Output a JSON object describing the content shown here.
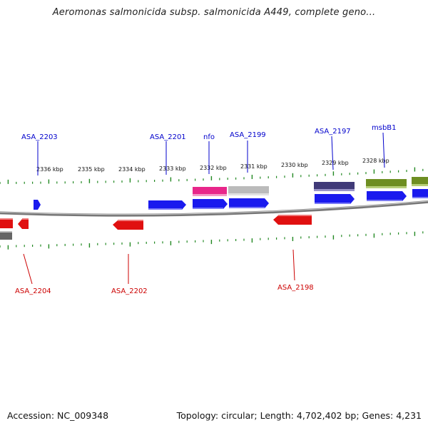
{
  "title": "Aeromonas salmonicida subsp. salmonicida A449, complete geno...",
  "footer": {
    "accession": "Accession: NC_009348",
    "topology": "Topology: circular; Length: 4,702,402 bp; Genes: 4,231"
  },
  "colors": {
    "forward_cds": "#1a1aee",
    "reverse_cds": "#e01010",
    "forward_label": "#0000cc",
    "reverse_label": "#cc0000",
    "ticks": "#228822",
    "backbone": "#888888"
  },
  "scale_labels": [
    {
      "kbp": 2336,
      "text": "2336 kbp"
    },
    {
      "kbp": 2335,
      "text": "2335 kbp"
    },
    {
      "kbp": 2334,
      "text": "2334 kbp"
    },
    {
      "kbp": 2333,
      "text": "2333 kbp"
    },
    {
      "kbp": 2332,
      "text": "2332 kbp"
    },
    {
      "kbp": 2331,
      "text": "2331 kbp"
    },
    {
      "kbp": 2330,
      "text": "2330 kbp"
    },
    {
      "kbp": 2329,
      "text": "2329 kbp"
    },
    {
      "kbp": 2328,
      "text": "2328 kbp"
    }
  ],
  "gene_labels": {
    "top": [
      {
        "name": "ASA_2203"
      },
      {
        "name": "ASA_2201"
      },
      {
        "name": "nfo"
      },
      {
        "name": "ASA_2199"
      },
      {
        "name": "ASA_2197"
      },
      {
        "name": "msbB1"
      }
    ],
    "bottom": [
      {
        "name": "ASA_2204"
      },
      {
        "name": "ASA_2202"
      },
      {
        "name": "ASA_2198"
      }
    ]
  },
  "features": {
    "forward_cds": [
      "ASA_2203",
      "ASA_2201",
      "nfo",
      "ASA_2199",
      "ASA_2197",
      "msbB1",
      "msbB1-next"
    ],
    "reverse_cds": [
      "ASA_2204-left",
      "ASA_2204",
      "ASA_2202",
      "ASA_2198"
    ],
    "outer_blocks": [
      {
        "name": "nfo-block",
        "color": "#e8268a"
      },
      {
        "name": "ASA_2199-block",
        "color": "#bbbbbb"
      },
      {
        "name": "ASA_2197-block",
        "color": "#403a78"
      },
      {
        "name": "msbB1-block",
        "color": "#6e8e22"
      },
      {
        "name": "next-block",
        "color": "#6e8e22"
      }
    ],
    "inner_blocks": [
      {
        "name": "left-inner-block",
        "color": "#666666"
      }
    ]
  }
}
